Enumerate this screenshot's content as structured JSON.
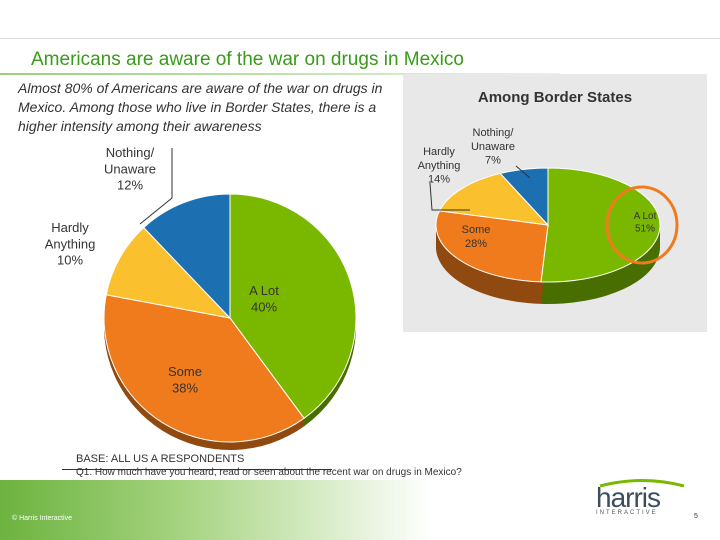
{
  "title": "Americans are aware of the war on drugs in Mexico",
  "subtitle": "Almost 80% of Americans are aware of the war on drugs in Mexico.  Among those who live in Border States, there is a higher intensity among their awareness",
  "footer": {
    "base": "BASE: ALL US A RESPONDENTS",
    "question": "Q1. How much have you heard, read or seen about the recent war on drugs in Mexico?",
    "copyright": "© Harris Interactive",
    "logo_main": "harris",
    "logo_sub": "INTERACTIVE",
    "page": "5"
  },
  "colors": {
    "a_lot": "#7ab800",
    "some": "#f07b1d",
    "hardly": "#fbc02d",
    "nothing": "#1c6fb0",
    "highlight": "#f07b1d"
  },
  "chart_data": [
    {
      "type": "pie",
      "title": "",
      "slices": [
        {
          "label": "A Lot",
          "value": 40,
          "text": "40%"
        },
        {
          "label": "Some",
          "value": 38,
          "text": "38%"
        },
        {
          "label": "Hardly Anything",
          "value": 10,
          "text": "10%"
        },
        {
          "label": "Nothing/ Unaware",
          "value": 12,
          "text": "12%"
        }
      ]
    },
    {
      "type": "pie",
      "title": "Among Border States",
      "slices": [
        {
          "label": "A Lot",
          "value": 51,
          "text": "51%"
        },
        {
          "label": "Some",
          "value": 28,
          "text": "28%"
        },
        {
          "label": "Hardly Anything",
          "value": 14,
          "text": "14%"
        },
        {
          "label": "Nothing/ Unaware",
          "value": 7,
          "text": "7%"
        }
      ],
      "highlighted": "A Lot"
    }
  ]
}
